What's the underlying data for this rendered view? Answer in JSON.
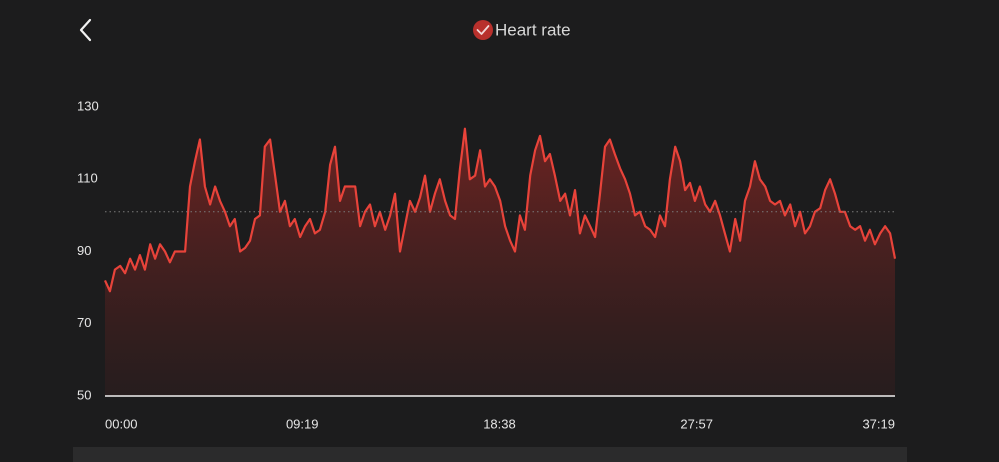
{
  "chart_data": {
    "type": "area",
    "title": "Heart rate",
    "x": [
      0,
      14,
      28,
      43,
      57,
      71,
      85,
      99,
      113,
      128,
      142,
      156,
      170,
      184,
      198,
      213,
      227,
      241,
      255,
      269,
      283,
      298,
      312,
      326,
      340,
      354,
      368,
      383,
      397,
      411,
      425,
      439,
      453,
      468,
      482,
      496,
      510,
      524,
      538,
      553,
      567,
      581,
      595,
      609,
      624,
      638,
      652,
      666,
      680,
      694,
      709,
      723,
      737,
      751,
      765,
      779,
      794,
      808,
      822,
      836,
      850,
      864,
      879,
      893,
      907,
      921,
      935,
      949,
      964,
      978,
      992,
      1006,
      1020,
      1034,
      1049,
      1063,
      1077,
      1091,
      1105,
      1120,
      1134,
      1148,
      1162,
      1176,
      1190,
      1205,
      1219,
      1233,
      1247,
      1261,
      1275,
      1290,
      1304,
      1318,
      1332,
      1346,
      1360,
      1375,
      1389,
      1403,
      1417,
      1431,
      1445,
      1460,
      1474,
      1488,
      1502,
      1516,
      1531,
      1545,
      1559,
      1573,
      1587,
      1601,
      1616,
      1630,
      1644,
      1658,
      1672,
      1686,
      1701,
      1715,
      1729,
      1743,
      1757,
      1771,
      1786,
      1800,
      1814,
      1828,
      1842,
      1856,
      1871,
      1885,
      1899,
      1913,
      1927,
      1942,
      1956,
      1970,
      1984,
      1998,
      2012,
      2027,
      2041,
      2055,
      2069,
      2083,
      2097,
      2112,
      2126,
      2140,
      2154,
      2168,
      2182,
      2197,
      2211,
      2225,
      2239
    ],
    "series": [
      {
        "color": "#e8433a",
        "values": [
          82,
          79,
          85,
          86,
          84,
          88,
          85,
          89,
          85,
          92,
          88,
          92,
          90,
          87,
          90,
          90,
          90,
          108,
          115,
          121,
          108,
          103,
          108,
          104,
          101,
          97,
          99,
          90,
          91,
          93,
          99,
          100,
          119,
          121,
          111,
          101,
          104,
          97,
          99,
          94,
          97,
          99,
          95,
          96,
          101,
          114,
          119,
          104,
          108,
          108,
          108,
          97,
          101,
          103,
          97,
          101,
          96,
          100,
          106,
          90,
          97,
          104,
          101,
          105,
          111,
          101,
          106,
          110,
          104,
          100,
          99,
          113,
          124,
          110,
          111,
          118,
          108,
          110,
          108,
          104,
          97,
          93,
          90,
          100,
          96,
          111,
          118,
          122,
          115,
          117,
          111,
          104,
          106,
          100,
          107,
          95,
          100,
          97,
          94,
          106,
          119,
          121,
          117,
          113,
          110,
          106,
          100,
          101,
          97,
          96,
          94,
          100,
          97,
          110,
          119,
          115,
          107,
          109,
          104,
          108,
          103,
          101,
          104,
          100,
          95,
          90,
          99,
          93,
          104,
          108,
          115,
          110,
          108,
          104,
          103,
          104,
          100,
          103,
          97,
          101,
          95,
          97,
          101,
          102,
          107,
          110,
          106,
          101,
          101,
          97,
          96,
          97,
          93,
          96,
          92,
          95,
          97,
          95,
          88
        ]
      }
    ],
    "xlim": [
      0,
      2239
    ],
    "xticks": [
      {
        "value": 0,
        "label": "00:00"
      },
      {
        "value": 559,
        "label": "09:19"
      },
      {
        "value": 1118,
        "label": "18:38"
      },
      {
        "value": 1677,
        "label": "27:57"
      },
      {
        "value": 2239,
        "label": "37:19"
      }
    ],
    "ylim": [
      50,
      130
    ],
    "yticks": [
      50,
      70,
      90,
      110,
      130
    ],
    "reference_line": 101,
    "grid": false
  }
}
